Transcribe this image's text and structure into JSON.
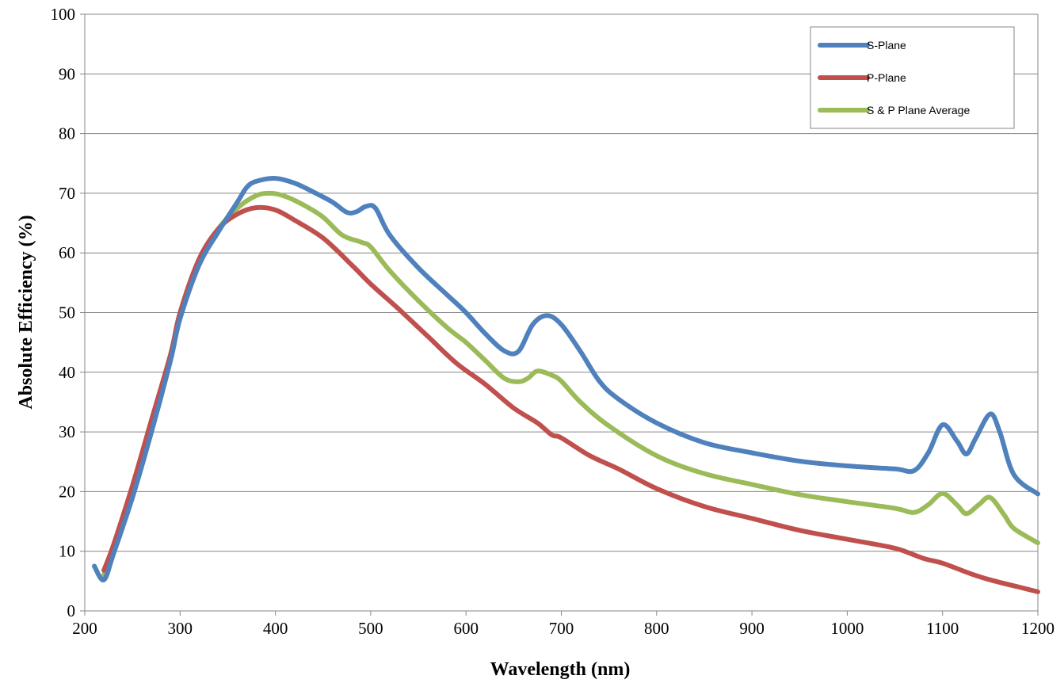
{
  "chart_data": {
    "type": "line",
    "title": "",
    "xlabel": "Wavelength (nm)",
    "ylabel": "Absolute Efficiency (%)",
    "xlim": [
      200,
      1200
    ],
    "ylim": [
      0,
      100
    ],
    "xticks": [
      200,
      300,
      400,
      500,
      600,
      700,
      800,
      900,
      1000,
      1100,
      1200
    ],
    "yticks": [
      0,
      10,
      20,
      30,
      40,
      50,
      60,
      70,
      80,
      90,
      100
    ],
    "grid": "horizontal",
    "legend_position": "top-right",
    "series": [
      {
        "name": "S-Plane",
        "color": "#4F81BD",
        "points": [
          [
            210,
            7.5
          ],
          [
            220,
            5.2
          ],
          [
            230,
            9.5
          ],
          [
            250,
            19
          ],
          [
            270,
            30
          ],
          [
            290,
            42
          ],
          [
            300,
            49
          ],
          [
            320,
            58
          ],
          [
            340,
            63.5
          ],
          [
            360,
            68.5
          ],
          [
            370,
            71
          ],
          [
            380,
            72
          ],
          [
            400,
            72.5
          ],
          [
            420,
            71.7
          ],
          [
            440,
            70.2
          ],
          [
            460,
            68.5
          ],
          [
            475,
            66.8
          ],
          [
            485,
            66.9
          ],
          [
            495,
            67.8
          ],
          [
            505,
            67.5
          ],
          [
            520,
            63
          ],
          [
            550,
            57.5
          ],
          [
            580,
            53
          ],
          [
            600,
            50
          ],
          [
            620,
            46.5
          ],
          [
            640,
            43.6
          ],
          [
            655,
            43.5
          ],
          [
            670,
            48
          ],
          [
            685,
            49.5
          ],
          [
            700,
            48
          ],
          [
            720,
            43.5
          ],
          [
            740,
            38.5
          ],
          [
            760,
            35.5
          ],
          [
            800,
            31.5
          ],
          [
            850,
            28.2
          ],
          [
            900,
            26.5
          ],
          [
            950,
            25.1
          ],
          [
            1000,
            24.3
          ],
          [
            1050,
            23.8
          ],
          [
            1070,
            23.5
          ],
          [
            1085,
            26.5
          ],
          [
            1100,
            31.2
          ],
          [
            1115,
            28.5
          ],
          [
            1125,
            26.3
          ],
          [
            1135,
            29
          ],
          [
            1150,
            33
          ],
          [
            1160,
            30
          ],
          [
            1175,
            22.8
          ],
          [
            1200,
            19.6
          ]
        ]
      },
      {
        "name": "P-Plane",
        "color": "#C0504D",
        "points": [
          [
            220,
            6.8
          ],
          [
            230,
            11
          ],
          [
            250,
            21
          ],
          [
            270,
            32
          ],
          [
            290,
            43
          ],
          [
            300,
            50
          ],
          [
            320,
            59
          ],
          [
            340,
            64
          ],
          [
            360,
            66.5
          ],
          [
            380,
            67.6
          ],
          [
            400,
            67.2
          ],
          [
            420,
            65.5
          ],
          [
            450,
            62.5
          ],
          [
            480,
            58
          ],
          [
            500,
            54.8
          ],
          [
            530,
            50.5
          ],
          [
            560,
            46
          ],
          [
            590,
            41.5
          ],
          [
            620,
            38
          ],
          [
            650,
            34
          ],
          [
            675,
            31.5
          ],
          [
            690,
            29.5
          ],
          [
            700,
            29
          ],
          [
            730,
            26
          ],
          [
            760,
            23.8
          ],
          [
            800,
            20.5
          ],
          [
            850,
            17.5
          ],
          [
            900,
            15.5
          ],
          [
            950,
            13.5
          ],
          [
            1000,
            12
          ],
          [
            1050,
            10.5
          ],
          [
            1080,
            8.8
          ],
          [
            1100,
            8
          ],
          [
            1130,
            6.2
          ],
          [
            1150,
            5.2
          ],
          [
            1180,
            4
          ],
          [
            1200,
            3.2
          ]
        ]
      },
      {
        "name": "S & P Plane Average",
        "color": "#9BBB59",
        "points": [
          [
            220,
            6
          ],
          [
            230,
            10
          ],
          [
            250,
            20
          ],
          [
            270,
            31
          ],
          [
            290,
            42.5
          ],
          [
            300,
            49.5
          ],
          [
            320,
            58.5
          ],
          [
            340,
            64
          ],
          [
            360,
            67.5
          ],
          [
            380,
            69.6
          ],
          [
            395,
            70
          ],
          [
            410,
            69.5
          ],
          [
            430,
            68
          ],
          [
            450,
            66
          ],
          [
            470,
            63
          ],
          [
            490,
            61.8
          ],
          [
            500,
            61
          ],
          [
            520,
            57
          ],
          [
            550,
            52
          ],
          [
            580,
            47.5
          ],
          [
            600,
            45
          ],
          [
            620,
            42
          ],
          [
            640,
            39
          ],
          [
            655,
            38.4
          ],
          [
            665,
            39
          ],
          [
            675,
            40.2
          ],
          [
            690,
            39.5
          ],
          [
            700,
            38.5
          ],
          [
            720,
            35
          ],
          [
            750,
            31
          ],
          [
            800,
            26
          ],
          [
            850,
            23
          ],
          [
            900,
            21.2
          ],
          [
            950,
            19.5
          ],
          [
            1000,
            18.3
          ],
          [
            1050,
            17.2
          ],
          [
            1070,
            16.5
          ],
          [
            1085,
            17.8
          ],
          [
            1100,
            19.7
          ],
          [
            1115,
            17.8
          ],
          [
            1125,
            16.3
          ],
          [
            1138,
            17.8
          ],
          [
            1150,
            19
          ],
          [
            1165,
            16
          ],
          [
            1175,
            13.8
          ],
          [
            1200,
            11.4
          ]
        ]
      }
    ]
  }
}
